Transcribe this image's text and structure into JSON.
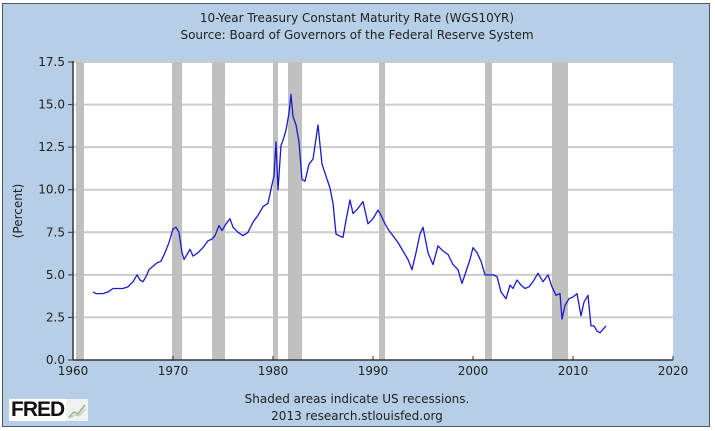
{
  "chart_data": {
    "type": "line",
    "title": "10-Year Treasury Constant Maturity Rate (WGS10YR)",
    "subtitle": "Source: Board of Governors of the Federal Reserve System",
    "xlabel": "",
    "ylabel": "(Percent)",
    "xlim": [
      1960,
      2020
    ],
    "ylim": [
      0,
      17.5
    ],
    "xticks": [
      "1960",
      "1970",
      "1980",
      "1990",
      "2000",
      "2010",
      "2020"
    ],
    "yticks": [
      "0.0",
      "2.5",
      "5.0",
      "7.5",
      "10.0",
      "12.5",
      "15.0",
      "17.5"
    ],
    "grid": true,
    "line_color": "#1a1acc",
    "recession_color": "#c0c0c0",
    "recessions": [
      [
        1960.3,
        1961.1
      ],
      [
        1969.9,
        1970.9
      ],
      [
        1973.9,
        1975.2
      ],
      [
        1980.0,
        1980.5
      ],
      [
        1981.5,
        1982.9
      ],
      [
        1990.6,
        1991.2
      ],
      [
        2001.2,
        2001.9
      ],
      [
        2007.9,
        2009.5
      ]
    ],
    "series": [
      {
        "name": "WGS10YR",
        "x": [
          1962.0,
          1962.3,
          1962.6,
          1963.0,
          1963.5,
          1964.0,
          1964.5,
          1965.0,
          1965.5,
          1966.0,
          1966.4,
          1966.7,
          1967.0,
          1967.3,
          1967.6,
          1968.0,
          1968.4,
          1968.8,
          1969.2,
          1969.6,
          1970.0,
          1970.3,
          1970.6,
          1970.9,
          1971.1,
          1971.4,
          1971.7,
          1972.0,
          1972.5,
          1973.0,
          1973.5,
          1973.9,
          1974.2,
          1974.6,
          1974.9,
          1975.3,
          1975.7,
          1976.0,
          1976.5,
          1977.0,
          1977.5,
          1978.0,
          1978.5,
          1979.0,
          1979.5,
          1979.9,
          1980.1,
          1980.3,
          1980.5,
          1980.8,
          1981.0,
          1981.3,
          1981.6,
          1981.8,
          1982.0,
          1982.3,
          1982.6,
          1982.9,
          1983.2,
          1983.6,
          1984.0,
          1984.5,
          1984.9,
          1985.3,
          1985.7,
          1986.0,
          1986.3,
          1986.6,
          1987.0,
          1987.3,
          1987.7,
          1988.0,
          1988.5,
          1989.0,
          1989.5,
          1990.0,
          1990.5,
          1990.8,
          1991.2,
          1991.6,
          1992.0,
          1992.5,
          1993.0,
          1993.5,
          1993.9,
          1994.3,
          1994.7,
          1995.0,
          1995.5,
          1996.0,
          1996.5,
          1997.0,
          1997.5,
          1998.0,
          1998.5,
          1998.9,
          1999.3,
          1999.7,
          2000.0,
          2000.4,
          2000.8,
          2001.2,
          2001.6,
          2002.0,
          2002.4,
          2002.8,
          2003.3,
          2003.7,
          2004.0,
          2004.4,
          2004.8,
          2005.2,
          2005.6,
          2006.0,
          2006.5,
          2007.0,
          2007.5,
          2007.9,
          2008.3,
          2008.7,
          2008.9,
          2009.2,
          2009.6,
          2010.0,
          2010.4,
          2010.8,
          2011.1,
          2011.5,
          2011.8,
          2012.1,
          2012.4,
          2012.7,
          2013.0,
          2013.3
        ],
        "y": [
          4.0,
          3.9,
          3.9,
          3.9,
          4.0,
          4.2,
          4.2,
          4.2,
          4.3,
          4.6,
          5.0,
          4.7,
          4.6,
          4.9,
          5.3,
          5.5,
          5.7,
          5.8,
          6.3,
          6.9,
          7.7,
          7.8,
          7.5,
          6.3,
          5.9,
          6.2,
          6.5,
          6.1,
          6.3,
          6.6,
          7.0,
          7.1,
          7.3,
          7.9,
          7.6,
          8.0,
          8.3,
          7.8,
          7.5,
          7.3,
          7.5,
          8.1,
          8.5,
          9.0,
          9.2,
          10.3,
          10.8,
          12.8,
          10.0,
          12.6,
          12.9,
          13.5,
          14.5,
          15.6,
          14.3,
          13.8,
          12.8,
          10.6,
          10.5,
          11.5,
          11.8,
          13.8,
          11.5,
          10.8,
          10.1,
          9.2,
          7.4,
          7.3,
          7.2,
          8.2,
          9.4,
          8.6,
          8.9,
          9.3,
          8.0,
          8.3,
          8.8,
          8.5,
          8.0,
          7.6,
          7.3,
          6.9,
          6.4,
          5.9,
          5.3,
          6.3,
          7.4,
          7.8,
          6.3,
          5.6,
          6.7,
          6.4,
          6.2,
          5.6,
          5.3,
          4.5,
          5.2,
          5.9,
          6.6,
          6.3,
          5.8,
          5.0,
          5.0,
          5.0,
          4.9,
          4.0,
          3.6,
          4.4,
          4.2,
          4.7,
          4.4,
          4.2,
          4.3,
          4.6,
          5.1,
          4.6,
          5.0,
          4.3,
          3.8,
          3.9,
          2.4,
          3.2,
          3.6,
          3.7,
          3.9,
          2.6,
          3.4,
          3.8,
          2.0,
          2.0,
          1.7,
          1.6,
          1.8,
          2.0
        ]
      }
    ]
  },
  "footer": {
    "note": "Shaded areas indicate US recessions.",
    "credit": "2013 research.stlouisfed.org",
    "logo": "FRED"
  }
}
